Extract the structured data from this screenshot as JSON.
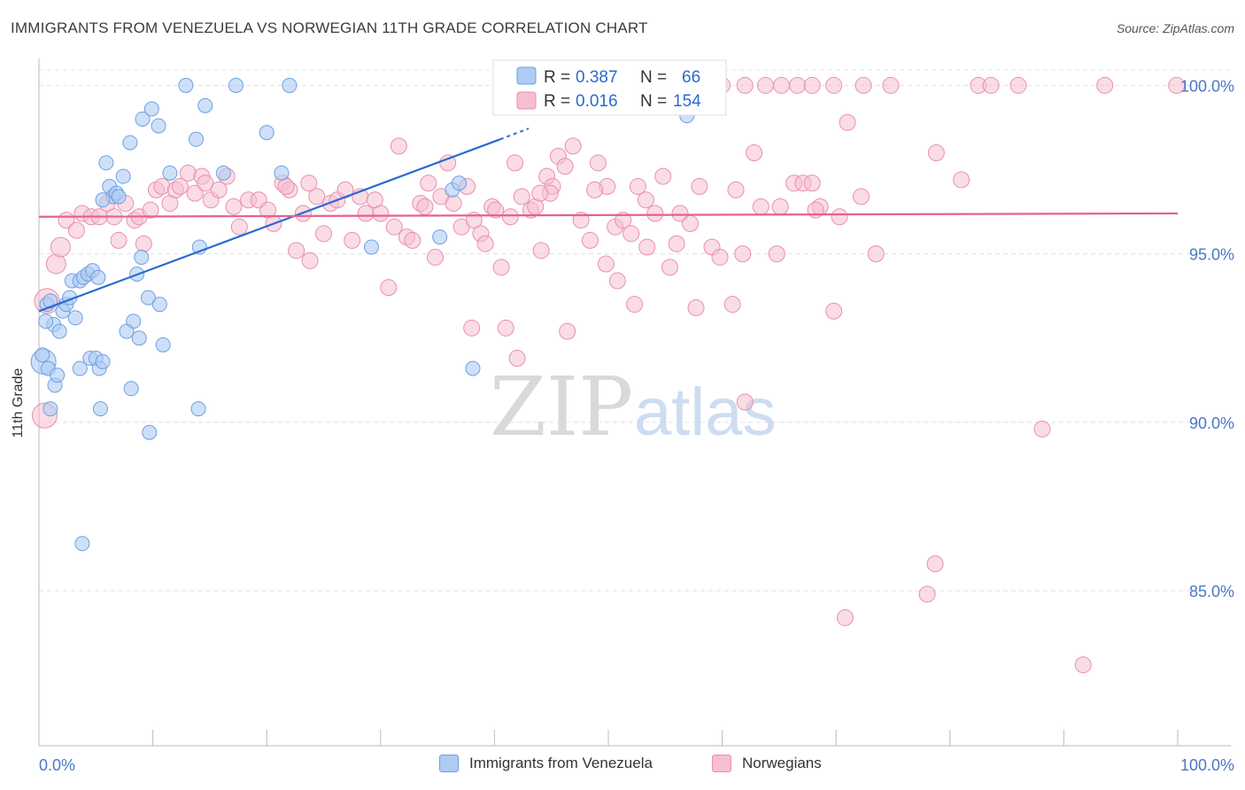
{
  "title": "IMMIGRANTS FROM VENEZUELA VS NORWEGIAN 11TH GRADE CORRELATION CHART",
  "source": "Source: ZipAtlas.com",
  "watermark": {
    "zip": "ZIP",
    "atlas": "atlas"
  },
  "colors": {
    "blue": "#aecbf3",
    "blue_stroke": "#6f9fe0",
    "blue_line": "#2a6ad1",
    "pink": "#f6bfd0",
    "pink_stroke": "#e98fae",
    "pink_line": "#e8608e",
    "tick_text": "#4a78c8",
    "grid": "#e0e0e0"
  },
  "legend_top": [
    {
      "r_label": "R = ",
      "r_value": "0.387",
      "n_label": "N = ",
      "n_value": "66"
    },
    {
      "r_label": "R = ",
      "r_value": "0.016",
      "n_label": "N = ",
      "n_value": "154"
    }
  ],
  "legend_bottom": [
    "Immigrants from Venezuela",
    "Norwegians"
  ],
  "chart_data": {
    "type": "scatter",
    "title": "IMMIGRANTS FROM VENEZUELA VS NORWEGIAN 11TH GRADE CORRELATION CHART",
    "xlabel": "",
    "ylabel": "11th Grade",
    "xlim": [
      0,
      100
    ],
    "ylim": [
      80.4,
      100.8
    ],
    "x_tick_labels": [
      "0.0%",
      "100.0%"
    ],
    "y_ticks": [
      85,
      90,
      95,
      100
    ],
    "y_tick_labels": [
      "85.0%",
      "90.0%",
      "95.0%",
      "100.0%"
    ],
    "grid": "horizontal dashed",
    "legend_position": "top-center",
    "series": [
      {
        "name": "Immigrants from Venezuela",
        "R": 0.387,
        "N": 66,
        "trend": [
          [
            0,
            93.3
          ],
          [
            40.5,
            98.4
          ]
        ],
        "points": [
          [
            1.3,
            92.9
          ],
          [
            1.8,
            92.7
          ],
          [
            0.4,
            91.8
          ],
          [
            0.8,
            91.6
          ],
          [
            1.4,
            91.1
          ],
          [
            1.6,
            91.4
          ],
          [
            2.1,
            93.3
          ],
          [
            2.4,
            93.5
          ],
          [
            2.7,
            93.7
          ],
          [
            3.2,
            93.1
          ],
          [
            2.9,
            94.2
          ],
          [
            3.6,
            94.2
          ],
          [
            3.9,
            94.3
          ],
          [
            4.3,
            94.4
          ],
          [
            4.7,
            94.5
          ],
          [
            5.2,
            94.3
          ],
          [
            3.6,
            91.6
          ],
          [
            4.5,
            91.9
          ],
          [
            5.0,
            91.9
          ],
          [
            5.3,
            91.6
          ],
          [
            5.6,
            91.8
          ],
          [
            5.4,
            90.4
          ],
          [
            1.0,
            90.4
          ],
          [
            3.8,
            86.4
          ],
          [
            5.9,
            97.7
          ],
          [
            6.2,
            97.0
          ],
          [
            6.5,
            96.7
          ],
          [
            6.8,
            96.8
          ],
          [
            7.0,
            96.7
          ],
          [
            7.4,
            97.3
          ],
          [
            5.6,
            96.6
          ],
          [
            8.0,
            98.3
          ],
          [
            9.1,
            99.0
          ],
          [
            9.9,
            99.3
          ],
          [
            10.5,
            98.8
          ],
          [
            8.3,
            93.0
          ],
          [
            7.7,
            92.7
          ],
          [
            8.8,
            92.5
          ],
          [
            8.6,
            94.4
          ],
          [
            9.0,
            94.9
          ],
          [
            9.6,
            93.7
          ],
          [
            10.6,
            93.5
          ],
          [
            10.9,
            92.3
          ],
          [
            8.1,
            91.0
          ],
          [
            9.7,
            89.7
          ],
          [
            11.5,
            97.4
          ],
          [
            12.9,
            100.0
          ],
          [
            13.8,
            98.4
          ],
          [
            14.6,
            99.4
          ],
          [
            14.1,
            95.2
          ],
          [
            16.2,
            97.4
          ],
          [
            17.3,
            100.0
          ],
          [
            20.0,
            98.6
          ],
          [
            21.3,
            97.4
          ],
          [
            22.0,
            100.0
          ],
          [
            14.0,
            90.4
          ],
          [
            29.2,
            95.2
          ],
          [
            35.2,
            95.5
          ],
          [
            36.3,
            96.9
          ],
          [
            36.9,
            97.1
          ],
          [
            38.1,
            91.6
          ],
          [
            56.9,
            99.1
          ],
          [
            0.6,
            93.0
          ],
          [
            0.7,
            93.5
          ],
          [
            0.3,
            92.0
          ],
          [
            1.0,
            93.6
          ]
        ]
      },
      {
        "name": "Norwegians",
        "R": 0.016,
        "N": 154,
        "trend": [
          [
            0,
            96.1
          ],
          [
            100,
            96.2
          ]
        ],
        "points": [
          [
            0.5,
            90.2
          ],
          [
            0.7,
            93.6
          ],
          [
            1.5,
            94.7
          ],
          [
            1.9,
            95.2
          ],
          [
            2.4,
            96.0
          ],
          [
            3.3,
            95.7
          ],
          [
            3.8,
            96.2
          ],
          [
            4.6,
            96.1
          ],
          [
            5.3,
            96.1
          ],
          [
            6.0,
            96.5
          ],
          [
            6.6,
            96.1
          ],
          [
            7.0,
            95.4
          ],
          [
            7.6,
            96.5
          ],
          [
            8.4,
            96.0
          ],
          [
            8.8,
            96.1
          ],
          [
            9.2,
            95.3
          ],
          [
            9.8,
            96.3
          ],
          [
            10.3,
            96.9
          ],
          [
            10.8,
            97.0
          ],
          [
            11.5,
            96.5
          ],
          [
            12.0,
            96.9
          ],
          [
            12.4,
            97.0
          ],
          [
            13.1,
            97.4
          ],
          [
            13.7,
            96.8
          ],
          [
            14.3,
            97.3
          ],
          [
            14.6,
            97.1
          ],
          [
            15.1,
            96.6
          ],
          [
            15.8,
            96.9
          ],
          [
            16.5,
            97.3
          ],
          [
            17.1,
            96.4
          ],
          [
            17.6,
            95.8
          ],
          [
            18.4,
            96.6
          ],
          [
            19.3,
            96.6
          ],
          [
            20.1,
            96.3
          ],
          [
            20.6,
            95.9
          ],
          [
            21.4,
            97.1
          ],
          [
            22.0,
            96.9
          ],
          [
            22.6,
            95.1
          ],
          [
            23.2,
            96.2
          ],
          [
            23.8,
            94.8
          ],
          [
            24.4,
            96.7
          ],
          [
            25.0,
            95.6
          ],
          [
            25.6,
            96.5
          ],
          [
            26.2,
            96.6
          ],
          [
            26.9,
            96.9
          ],
          [
            27.5,
            95.4
          ],
          [
            28.2,
            96.7
          ],
          [
            28.7,
            96.2
          ],
          [
            29.5,
            96.6
          ],
          [
            30.0,
            96.2
          ],
          [
            30.7,
            94.0
          ],
          [
            31.2,
            95.8
          ],
          [
            31.6,
            98.2
          ],
          [
            32.3,
            95.5
          ],
          [
            32.8,
            95.4
          ],
          [
            33.5,
            96.5
          ],
          [
            33.9,
            96.4
          ],
          [
            34.2,
            97.1
          ],
          [
            34.8,
            94.9
          ],
          [
            35.3,
            96.7
          ],
          [
            35.9,
            97.7
          ],
          [
            36.4,
            96.5
          ],
          [
            37.1,
            95.8
          ],
          [
            37.6,
            97.0
          ],
          [
            38.2,
            96.0
          ],
          [
            38.8,
            95.6
          ],
          [
            39.2,
            95.3
          ],
          [
            39.8,
            96.4
          ],
          [
            40.6,
            94.6
          ],
          [
            41.4,
            96.1
          ],
          [
            41.8,
            97.7
          ],
          [
            42.4,
            96.7
          ],
          [
            43.2,
            96.3
          ],
          [
            43.6,
            96.4
          ],
          [
            44.1,
            95.1
          ],
          [
            44.6,
            97.3
          ],
          [
            45.1,
            97.0
          ],
          [
            45.6,
            97.9
          ],
          [
            46.2,
            97.6
          ],
          [
            46.9,
            98.2
          ],
          [
            47.6,
            96.0
          ],
          [
            48.4,
            95.4
          ],
          [
            49.1,
            97.7
          ],
          [
            49.9,
            97.0
          ],
          [
            50.6,
            95.8
          ],
          [
            51.3,
            96.0
          ],
          [
            52.0,
            95.6
          ],
          [
            52.6,
            97.0
          ],
          [
            53.3,
            96.6
          ],
          [
            54.1,
            96.2
          ],
          [
            54.8,
            97.3
          ],
          [
            55.4,
            94.6
          ],
          [
            56.3,
            96.2
          ],
          [
            57.2,
            95.9
          ],
          [
            58.0,
            97.0
          ],
          [
            59.1,
            95.2
          ],
          [
            59.8,
            94.9
          ],
          [
            61.2,
            96.9
          ],
          [
            62.8,
            98.0
          ],
          [
            63.4,
            96.4
          ],
          [
            64.8,
            95.0
          ],
          [
            66.3,
            97.1
          ],
          [
            67.1,
            97.1
          ],
          [
            67.9,
            97.1
          ],
          [
            68.6,
            96.4
          ],
          [
            72.2,
            96.7
          ],
          [
            73.5,
            95.0
          ],
          [
            23.7,
            97.1
          ],
          [
            45.7,
            99.8
          ],
          [
            54.4,
            100.0
          ],
          [
            60.0,
            100.0
          ],
          [
            62.0,
            100.0
          ],
          [
            63.8,
            100.0
          ],
          [
            65.2,
            100.0
          ],
          [
            66.6,
            100.0
          ],
          [
            67.9,
            100.0
          ],
          [
            69.8,
            100.0
          ],
          [
            71.0,
            98.9
          ],
          [
            72.4,
            100.0
          ],
          [
            74.8,
            100.0
          ],
          [
            78.8,
            98.0
          ],
          [
            81.0,
            97.2
          ],
          [
            82.5,
            100.0
          ],
          [
            83.6,
            100.0
          ],
          [
            86.0,
            100.0
          ],
          [
            93.6,
            100.0
          ],
          [
            99.9,
            100.0
          ],
          [
            46.4,
            92.7
          ],
          [
            50.8,
            94.2
          ],
          [
            52.3,
            93.5
          ],
          [
            57.7,
            93.4
          ],
          [
            60.9,
            93.5
          ],
          [
            69.8,
            93.3
          ],
          [
            38.0,
            92.8
          ],
          [
            41.0,
            92.8
          ],
          [
            42.0,
            91.9
          ],
          [
            62.0,
            90.6
          ],
          [
            70.8,
            84.2
          ],
          [
            78.0,
            84.9
          ],
          [
            78.7,
            85.8
          ],
          [
            88.1,
            89.8
          ],
          [
            91.7,
            82.8
          ],
          [
            49.8,
            94.7
          ],
          [
            53.4,
            95.2
          ],
          [
            56.0,
            95.3
          ],
          [
            44.9,
            96.8
          ],
          [
            48.8,
            96.9
          ],
          [
            61.8,
            95.0
          ],
          [
            65.1,
            96.4
          ],
          [
            68.2,
            96.3
          ],
          [
            70.3,
            96.1
          ],
          [
            44.0,
            96.8
          ],
          [
            21.7,
            97.0
          ],
          [
            40.1,
            96.3
          ]
        ]
      }
    ]
  }
}
